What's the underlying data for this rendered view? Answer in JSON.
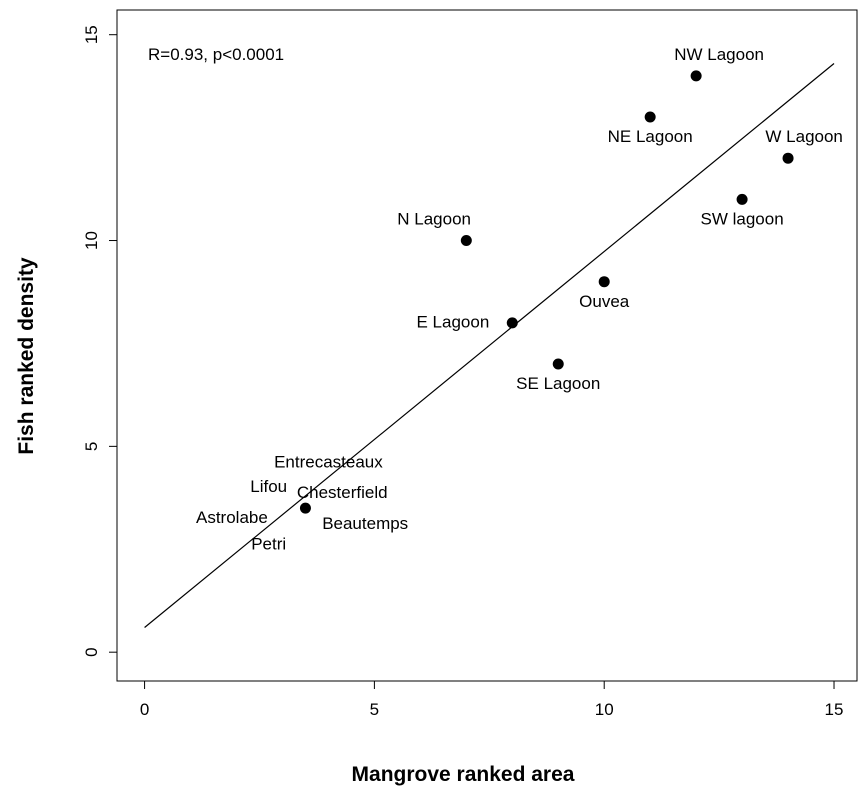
{
  "chart_data": {
    "type": "scatter",
    "title": "",
    "xlabel": "Mangrove ranked area",
    "ylabel": "Fish ranked density",
    "xlim": [
      -0.6,
      15.5
    ],
    "ylim": [
      -0.7,
      15.6
    ],
    "xticks": [
      0,
      5,
      10,
      15
    ],
    "yticks": [
      0,
      5,
      10,
      15
    ],
    "grid": false,
    "annotation": "R=0.93, p<0.0001",
    "points": [
      {
        "x": 14,
        "y": 12
      },
      {
        "x": 13,
        "y": 11
      },
      {
        "x": 12,
        "y": 14
      },
      {
        "x": 11,
        "y": 13
      },
      {
        "x": 10,
        "y": 9
      },
      {
        "x": 9,
        "y": 7
      },
      {
        "x": 8,
        "y": 8
      },
      {
        "x": 7,
        "y": 10
      },
      {
        "x": 3.5,
        "y": 3.5
      }
    ],
    "point_labels": [
      {
        "text": "NW Lagoon",
        "x": 12.5,
        "y": 14.5,
        "anchor": "middle"
      },
      {
        "text": "NE Lagoon",
        "x": 11.0,
        "y": 12.5,
        "anchor": "middle"
      },
      {
        "text": "W Lagoon",
        "x": 14.35,
        "y": 12.5,
        "anchor": "middle"
      },
      {
        "text": "SW lagoon",
        "x": 13.0,
        "y": 10.5,
        "anchor": "middle"
      },
      {
        "text": "N Lagoon",
        "x": 6.3,
        "y": 10.5,
        "anchor": "middle"
      },
      {
        "text": "Ouvea",
        "x": 10.0,
        "y": 8.5,
        "anchor": "middle"
      },
      {
        "text": "E Lagoon",
        "x": 7.5,
        "y": 8.0,
        "anchor": "end"
      },
      {
        "text": "SE Lagoon",
        "x": 9.0,
        "y": 6.5,
        "anchor": "middle"
      },
      {
        "text": "Entrecasteaux",
        "x": 4.0,
        "y": 4.6,
        "anchor": "middle"
      },
      {
        "text": "Lifou",
        "x": 2.7,
        "y": 4.0,
        "anchor": "middle"
      },
      {
        "text": "Chesterfield",
        "x": 4.3,
        "y": 3.85,
        "anchor": "middle"
      },
      {
        "text": "Astrolabe",
        "x": 1.9,
        "y": 3.25,
        "anchor": "middle"
      },
      {
        "text": "Beautemps",
        "x": 4.8,
        "y": 3.1,
        "anchor": "middle"
      },
      {
        "text": "Petri",
        "x": 2.7,
        "y": 2.6,
        "anchor": "middle"
      }
    ],
    "fit_line": {
      "x1": 0,
      "y1": 0.6,
      "x2": 15,
      "y2": 14.3
    }
  }
}
